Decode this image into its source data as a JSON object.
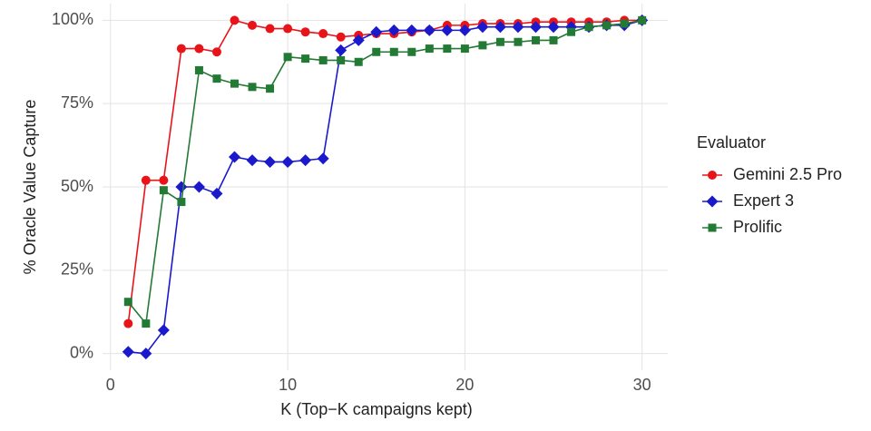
{
  "chart_data": {
    "type": "line",
    "x_label": "K (Top−K campaigns kept)",
    "y_label": "% Oracle Value Capture",
    "legend_title": "Evaluator",
    "legend_position": "right",
    "grid": true,
    "x": [
      1,
      2,
      3,
      4,
      5,
      6,
      7,
      8,
      9,
      10,
      11,
      12,
      13,
      14,
      15,
      16,
      17,
      18,
      19,
      20,
      21,
      22,
      23,
      24,
      25,
      26,
      27,
      28,
      29,
      30
    ],
    "xlim": [
      -0.45,
      31.45
    ],
    "xticks": [
      0,
      10,
      20,
      30
    ],
    "ylim": [
      -5,
      105
    ],
    "yticks": [
      {
        "value": 0,
        "label": "0%"
      },
      {
        "value": 25,
        "label": "25%"
      },
      {
        "value": 50,
        "label": "50%"
      },
      {
        "value": 75,
        "label": "75%"
      },
      {
        "value": 100,
        "label": "100%"
      }
    ],
    "series": [
      {
        "name": "Gemini 2.5 Pro",
        "color": "#e8141a",
        "marker": "circle",
        "values": [
          9,
          52,
          52,
          91.5,
          91.5,
          90.5,
          100,
          98.5,
          97.5,
          97.5,
          96.5,
          96,
          95,
          95.5,
          96,
          96,
          96.5,
          97,
          98.5,
          98.5,
          99,
          99,
          99,
          99.5,
          99.5,
          99.5,
          99.5,
          99.5,
          100,
          100
        ]
      },
      {
        "name": "Expert 3",
        "color": "#1a1acc",
        "marker": "diamond",
        "values": [
          0.5,
          0,
          7,
          50,
          50,
          48,
          59,
          58,
          57.5,
          57.5,
          58,
          58.5,
          91,
          94,
          96.5,
          97,
          97,
          97,
          97,
          97,
          98,
          98,
          98,
          98,
          98,
          98,
          98,
          98.5,
          98.5,
          100
        ]
      },
      {
        "name": "Prolific",
        "color": "#237a35",
        "marker": "square",
        "values": [
          15.5,
          9,
          49,
          45.5,
          85,
          82.5,
          81,
          80,
          79.5,
          89,
          88.5,
          88,
          88,
          87.5,
          90.5,
          90.5,
          90.5,
          91.5,
          91.5,
          91.5,
          92.5,
          93.5,
          93.5,
          94,
          94,
          96.5,
          98,
          98.5,
          99,
          100
        ]
      }
    ]
  }
}
